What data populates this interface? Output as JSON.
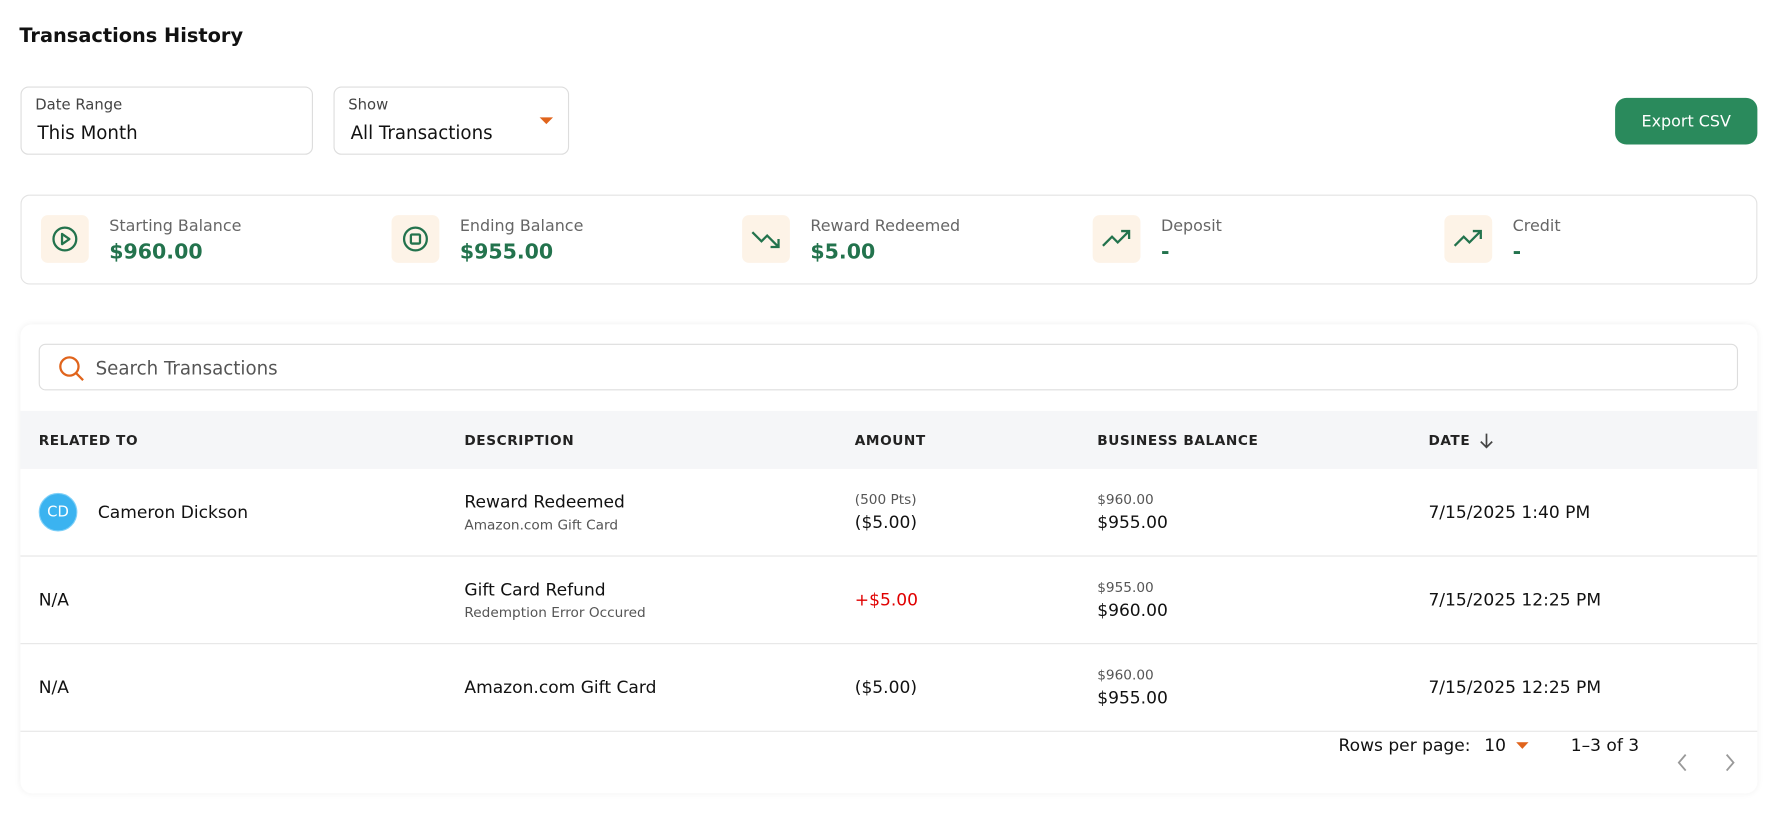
{
  "header": {
    "title": "Transactions History",
    "export_button": "Export CSV"
  },
  "filters": [
    {
      "label": "Date Range",
      "value": "This Month"
    },
    {
      "label": "Show",
      "value": "All Transactions"
    }
  ],
  "summary": [
    {
      "label": "Starting Balance",
      "value": "$960.00"
    },
    {
      "label": "Ending Balance",
      "value": "$955.00"
    },
    {
      "label": "Reward Redeemed",
      "value": "$5.00"
    },
    {
      "label": "Deposit",
      "value": "-"
    },
    {
      "label": "Credit",
      "value": "-"
    }
  ],
  "search": {
    "placeholder": "Search Transactions"
  },
  "table": {
    "columns": [
      "RELATED TO",
      "DESCRIPTION",
      "AMOUNT",
      "BUSINESS BALANCE",
      "DATE"
    ],
    "rows": [
      {
        "avatar": "CD",
        "related": "Cameron Dickson",
        "description": "Reward Redeemed",
        "sub_description": "Amazon.com Gift Card",
        "amount_note": "(500 Pts)",
        "amount": "($5.00)",
        "balance_before": "$960.00",
        "balance_after": "$955.00",
        "date": "7/15/2025 1:40 PM"
      },
      {
        "related": "N/A",
        "description": "Gift Card Refund",
        "sub_description": "Redemption Error Occured",
        "amount": "+$5.00",
        "balance_before": "$955.00",
        "balance_after": "$960.00",
        "date": "7/15/2025 12:25 PM"
      },
      {
        "related": "N/A",
        "description": "Amazon.com Gift Card",
        "amount": "($5.00)",
        "balance_before": "$960.00",
        "balance_after": "$955.00",
        "date": "7/15/2025 12:25 PM"
      }
    ]
  },
  "pagination": {
    "rows_per_page_label": "Rows per page:",
    "rows_per_page": "10",
    "range": "1–3 of 3"
  }
}
